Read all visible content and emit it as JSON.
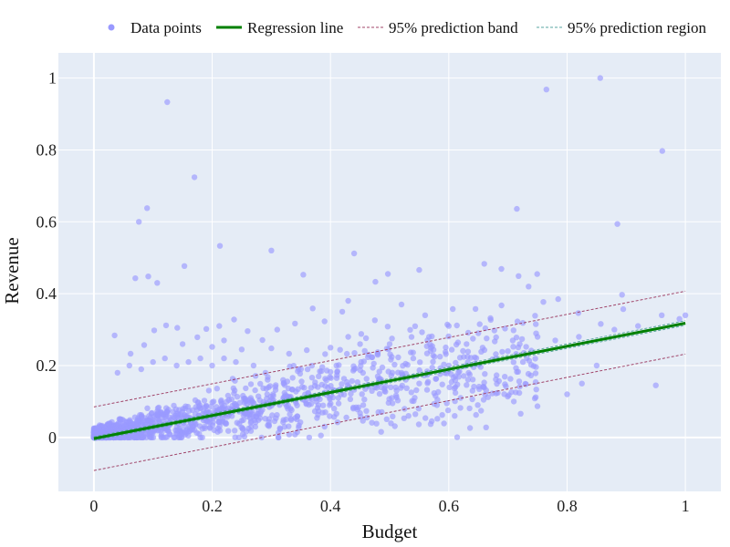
{
  "chart_data": {
    "type": "scatter",
    "xlabel": "Budget",
    "ylabel": "Revenue",
    "xlim": [
      -0.06,
      1.06
    ],
    "ylim": [
      -0.15,
      1.07
    ],
    "xticks": [
      0,
      0.2,
      0.4,
      0.6,
      0.8,
      1
    ],
    "yticks": [
      0,
      0.2,
      0.4,
      0.6,
      0.8,
      1
    ],
    "xtick_labels": [
      "0",
      "0.2",
      "0.4",
      "0.6",
      "0.8",
      "1"
    ],
    "ytick_labels": [
      "0",
      "0.2",
      "0.4",
      "0.6",
      "0.8",
      "1"
    ],
    "grid": true,
    "legend_position": "top",
    "legend": [
      {
        "key": "points",
        "label": "Data points"
      },
      {
        "key": "regression",
        "label": "Regression line"
      },
      {
        "key": "band",
        "label": "95% prediction band"
      },
      {
        "key": "region",
        "label": "95% prediction region"
      }
    ],
    "colors": {
      "plot_bg": "#e5ecf6",
      "grid": "#ffffff",
      "points": "#9999ff",
      "regression": "#008000",
      "band": "#a0456a",
      "region": "#5aa6a0"
    },
    "regression": {
      "x": [
        0,
        1
      ],
      "y": [
        -0.003,
        0.318
      ]
    },
    "prediction_band_upper": {
      "x": [
        0,
        1
      ],
      "y": [
        0.085,
        0.407
      ]
    },
    "prediction_band_lower": {
      "x": [
        0,
        1
      ],
      "y": [
        -0.092,
        0.232
      ]
    },
    "prediction_region_upper": {
      "x": [
        0,
        1
      ],
      "y": [
        0.002,
        0.325
      ]
    },
    "prediction_region_lower": {
      "x": [
        0,
        1
      ],
      "y": [
        -0.008,
        0.312
      ]
    },
    "series": [
      {
        "name": "Data points",
        "points": [
          [
            0.124,
            0.933
          ],
          [
            0.856,
            1.0
          ],
          [
            0.765,
            0.968
          ],
          [
            0.961,
            0.797
          ],
          [
            0.17,
            0.724
          ],
          [
            0.09,
            0.638
          ],
          [
            0.715,
            0.636
          ],
          [
            0.076,
            0.6
          ],
          [
            0.885,
            0.594
          ],
          [
            0.213,
            0.533
          ],
          [
            0.3,
            0.52
          ],
          [
            0.44,
            0.512
          ],
          [
            0.66,
            0.483
          ],
          [
            0.55,
            0.466
          ],
          [
            0.153,
            0.477
          ],
          [
            0.354,
            0.453
          ],
          [
            0.07,
            0.443
          ],
          [
            0.092,
            0.448
          ],
          [
            0.107,
            0.43
          ],
          [
            0.43,
            0.38
          ],
          [
            0.476,
            0.433
          ],
          [
            0.497,
            0.455
          ],
          [
            0.689,
            0.469
          ],
          [
            0.718,
            0.449
          ],
          [
            0.735,
            0.42
          ],
          [
            0.76,
            0.377
          ],
          [
            0.785,
            0.385
          ],
          [
            0.819,
            0.346
          ],
          [
            0.857,
            0.316
          ],
          [
            0.893,
            0.397
          ],
          [
            0.895,
            0.357
          ],
          [
            0.99,
            0.33
          ],
          [
            1.0,
            0.34
          ],
          [
            0.8,
            0.12
          ],
          [
            0.825,
            0.15
          ],
          [
            0.747,
            0.112
          ],
          [
            0.71,
            0.1
          ],
          [
            0.85,
            0.2
          ],
          [
            0.95,
            0.145
          ],
          [
            0.58,
            0.09
          ],
          [
            0.61,
            0.06
          ],
          [
            0.663,
            0.028
          ],
          [
            0.62,
            0.11
          ],
          [
            0.64,
            0.13
          ],
          [
            0.495,
            0.051
          ],
          [
            0.532,
            0.06
          ],
          [
            0.47,
            0.041
          ],
          [
            0.39,
            0.03
          ],
          [
            0.41,
            0.066
          ],
          [
            0.45,
            0.068
          ],
          [
            0.505,
            0.095
          ],
          [
            0.56,
            0.34
          ],
          [
            0.6,
            0.31
          ],
          [
            0.65,
            0.29
          ],
          [
            0.7,
            0.24
          ],
          [
            0.52,
            0.37
          ],
          [
            0.475,
            0.326
          ],
          [
            0.46,
            0.276
          ],
          [
            0.42,
            0.35
          ],
          [
            0.39,
            0.323
          ],
          [
            0.37,
            0.359
          ],
          [
            0.34,
            0.317
          ],
          [
            0.31,
            0.3
          ],
          [
            0.285,
            0.271
          ],
          [
            0.26,
            0.296
          ],
          [
            0.237,
            0.328
          ],
          [
            0.212,
            0.31
          ],
          [
            0.19,
            0.302
          ],
          [
            0.175,
            0.279
          ],
          [
            0.141,
            0.305
          ],
          [
            0.122,
            0.312
          ],
          [
            0.102,
            0.298
          ],
          [
            0.085,
            0.257
          ],
          [
            0.062,
            0.233
          ],
          [
            0.035,
            0.284
          ],
          [
            0.15,
            0.26
          ],
          [
            0.2,
            0.252
          ],
          [
            0.22,
            0.27
          ],
          [
            0.25,
            0.245
          ],
          [
            0.3,
            0.248
          ],
          [
            0.33,
            0.233
          ],
          [
            0.36,
            0.243
          ],
          [
            0.4,
            0.25
          ],
          [
            0.43,
            0.28
          ],
          [
            0.45,
            0.26
          ],
          [
            0.48,
            0.23
          ],
          [
            0.5,
            0.26
          ],
          [
            0.54,
            0.22
          ],
          [
            0.57,
            0.25
          ],
          [
            0.6,
            0.2
          ],
          [
            0.63,
            0.26
          ],
          [
            0.68,
            0.22
          ],
          [
            0.72,
            0.26
          ],
          [
            0.75,
            0.28
          ],
          [
            0.78,
            0.27
          ],
          [
            0.82,
            0.28
          ],
          [
            0.88,
            0.3
          ],
          [
            0.92,
            0.31
          ],
          [
            0.96,
            0.34
          ],
          [
            0.55,
            0.15
          ],
          [
            0.52,
            0.18
          ],
          [
            0.48,
            0.17
          ],
          [
            0.44,
            0.19
          ],
          [
            0.41,
            0.2
          ],
          [
            0.38,
            0.17
          ],
          [
            0.35,
            0.19
          ],
          [
            0.32,
            0.16
          ],
          [
            0.29,
            0.18
          ],
          [
            0.27,
            0.2
          ],
          [
            0.24,
            0.21
          ],
          [
            0.22,
            0.22
          ],
          [
            0.2,
            0.2
          ],
          [
            0.18,
            0.22
          ],
          [
            0.16,
            0.21
          ],
          [
            0.14,
            0.2
          ],
          [
            0.12,
            0.22
          ],
          [
            0.1,
            0.21
          ],
          [
            0.08,
            0.19
          ],
          [
            0.06,
            0.2
          ],
          [
            0.04,
            0.18
          ]
        ]
      }
    ]
  }
}
